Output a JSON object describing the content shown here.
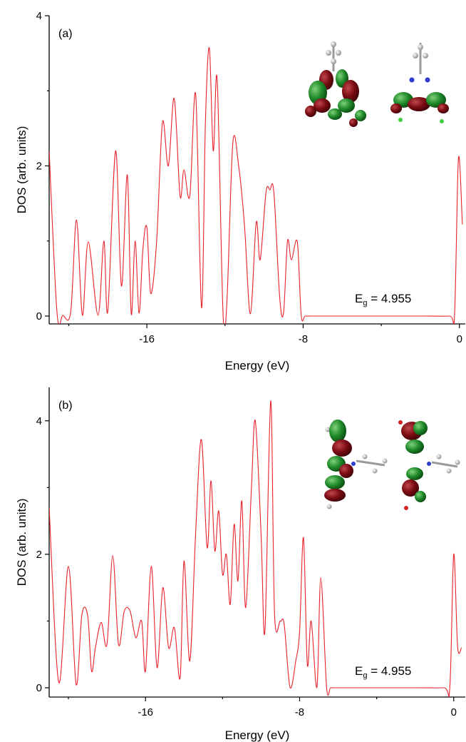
{
  "chart_data": [
    {
      "type": "line",
      "panel_label": "(a)",
      "xlabel": "Energy (eV)",
      "ylabel": "DOS (arb. units)",
      "xlim": [
        -21,
        0.3
      ],
      "ylim": [
        0,
        4
      ],
      "xticks": [
        -16,
        -8,
        0
      ],
      "yticks": [
        0,
        2,
        4
      ],
      "xtick_labels": [
        "-16",
        "-8",
        "0"
      ],
      "ytick_labels": [
        "0",
        "2",
        "4"
      ],
      "annotation": {
        "text_main": "E",
        "text_sub": "g",
        "text_value": " = 4.955"
      },
      "inset": "molecular orbital renderings (two views)",
      "series": [
        {
          "x": [
            -21.0,
            -20.6,
            -20.3,
            -19.9,
            -19.6,
            -19.3,
            -19.0,
            -18.5,
            -18.2,
            -18.0,
            -17.6,
            -17.3,
            -17.0,
            -16.8,
            -16.6,
            -16.4,
            -16.2,
            -16.0,
            -15.8,
            -15.5,
            -15.2,
            -14.9,
            -14.6,
            -14.3,
            -14.1,
            -13.8,
            -13.5,
            -13.2,
            -13.0,
            -12.8,
            -12.6,
            -12.4,
            -12.1,
            -11.9,
            -11.6,
            -11.3,
            -11.0,
            -10.7,
            -10.4,
            -10.2,
            -9.9,
            -9.7,
            -9.5,
            -9.2,
            -9.0,
            -8.8,
            -8.6,
            -8.3,
            -8.1,
            -7.9,
            -7.6,
            -7.4,
            -7.3,
            -7.2,
            -7.0,
            -6.8,
            -6.6,
            -6.5,
            -6.4,
            -6.2,
            -6.0,
            -5.8,
            -5.5,
            -5.0,
            -2.0,
            -0.5,
            -0.25,
            -0.05,
            0.15
          ],
          "y": [
            2.2,
            0.05,
            0.01,
            0.05,
            1.28,
            0.01,
            0.99,
            0.01,
            1.0,
            0.06,
            2.2,
            0.4,
            1.88,
            0.03,
            1.0,
            0.04,
            0.9,
            1.18,
            0.3,
            0.99,
            2.58,
            2.0,
            2.9,
            1.6,
            1.95,
            1.6,
            2.95,
            0.11,
            2.6,
            3.57,
            2.2,
            3.15,
            0.03,
            0.2,
            2.3,
            2.0,
            1.2,
            0.03,
            1.25,
            0.75,
            1.65,
            1.68,
            1.65,
            0.25,
            0.05,
            1.0,
            0.75,
            0.99,
            0.01,
            0.0,
            0.0,
            0.0,
            0.0,
            0.0,
            0.0,
            0.0,
            0.0,
            0.0,
            0.0,
            0.0,
            0.0,
            0.0,
            0.0,
            0.0,
            0.0,
            0.0,
            0.02,
            2.1,
            1.22
          ]
        }
      ]
    },
    {
      "type": "line",
      "panel_label": "(b)",
      "xlabel": "Energy (eV)",
      "ylabel": "DOS (arb. units)",
      "xlim": [
        -21,
        0.6
      ],
      "ylim": [
        0,
        4.5
      ],
      "xticks": [
        -16,
        -8,
        0
      ],
      "yticks": [
        0,
        2,
        4
      ],
      "xtick_labels": [
        "-16",
        "-8",
        "0"
      ],
      "ytick_labels": [
        "0",
        "2",
        "4"
      ],
      "annotation": {
        "text_main": "E",
        "text_sub": "g",
        "text_value": " = 4.955"
      },
      "inset": "molecular orbital renderings (two views)",
      "series": [
        {
          "x": [
            -21.0,
            -20.5,
            -20.0,
            -19.6,
            -19.3,
            -19.0,
            -18.8,
            -18.6,
            -18.3,
            -18.0,
            -17.7,
            -17.4,
            -17.1,
            -16.8,
            -16.5,
            -16.2,
            -16.0,
            -15.7,
            -15.4,
            -15.1,
            -14.8,
            -14.5,
            -14.2,
            -14.0,
            -13.7,
            -13.4,
            -13.1,
            -12.8,
            -12.6,
            -12.4,
            -12.2,
            -12.0,
            -11.8,
            -11.6,
            -11.4,
            -11.2,
            -11.0,
            -10.8,
            -10.5,
            -10.3,
            -10.0,
            -9.8,
            -9.5,
            -9.3,
            -9.0,
            -8.8,
            -8.5,
            -8.2,
            -8.0,
            -7.8,
            -7.6,
            -7.4,
            -7.1,
            -6.9,
            -6.6,
            -6.4,
            -6.2,
            -6.0,
            -5.5,
            -5.0,
            -2.0,
            -0.5,
            -0.2,
            0.0,
            0.2,
            0.4
          ],
          "y": [
            2.7,
            0.08,
            1.82,
            0.05,
            1.1,
            1.08,
            0.25,
            0.6,
            0.98,
            0.65,
            1.98,
            0.65,
            1.15,
            1.15,
            0.75,
            1.0,
            0.25,
            1.82,
            0.3,
            1.5,
            0.6,
            0.9,
            0.15,
            1.9,
            0.4,
            2.3,
            3.72,
            2.1,
            3.1,
            2.05,
            2.65,
            1.7,
            2.0,
            1.25,
            2.45,
            1.6,
            2.8,
            1.2,
            3.0,
            4.0,
            2.3,
            0.85,
            4.3,
            1.1,
            1.0,
            0.95,
            0.01,
            0.4,
            0.85,
            2.25,
            0.35,
            1.0,
            0.01,
            1.65,
            0.01,
            0.0,
            0.0,
            0.0,
            0.0,
            0.0,
            0.0,
            0.0,
            0.02,
            2.0,
            0.62,
            0.6
          ]
        }
      ]
    }
  ]
}
